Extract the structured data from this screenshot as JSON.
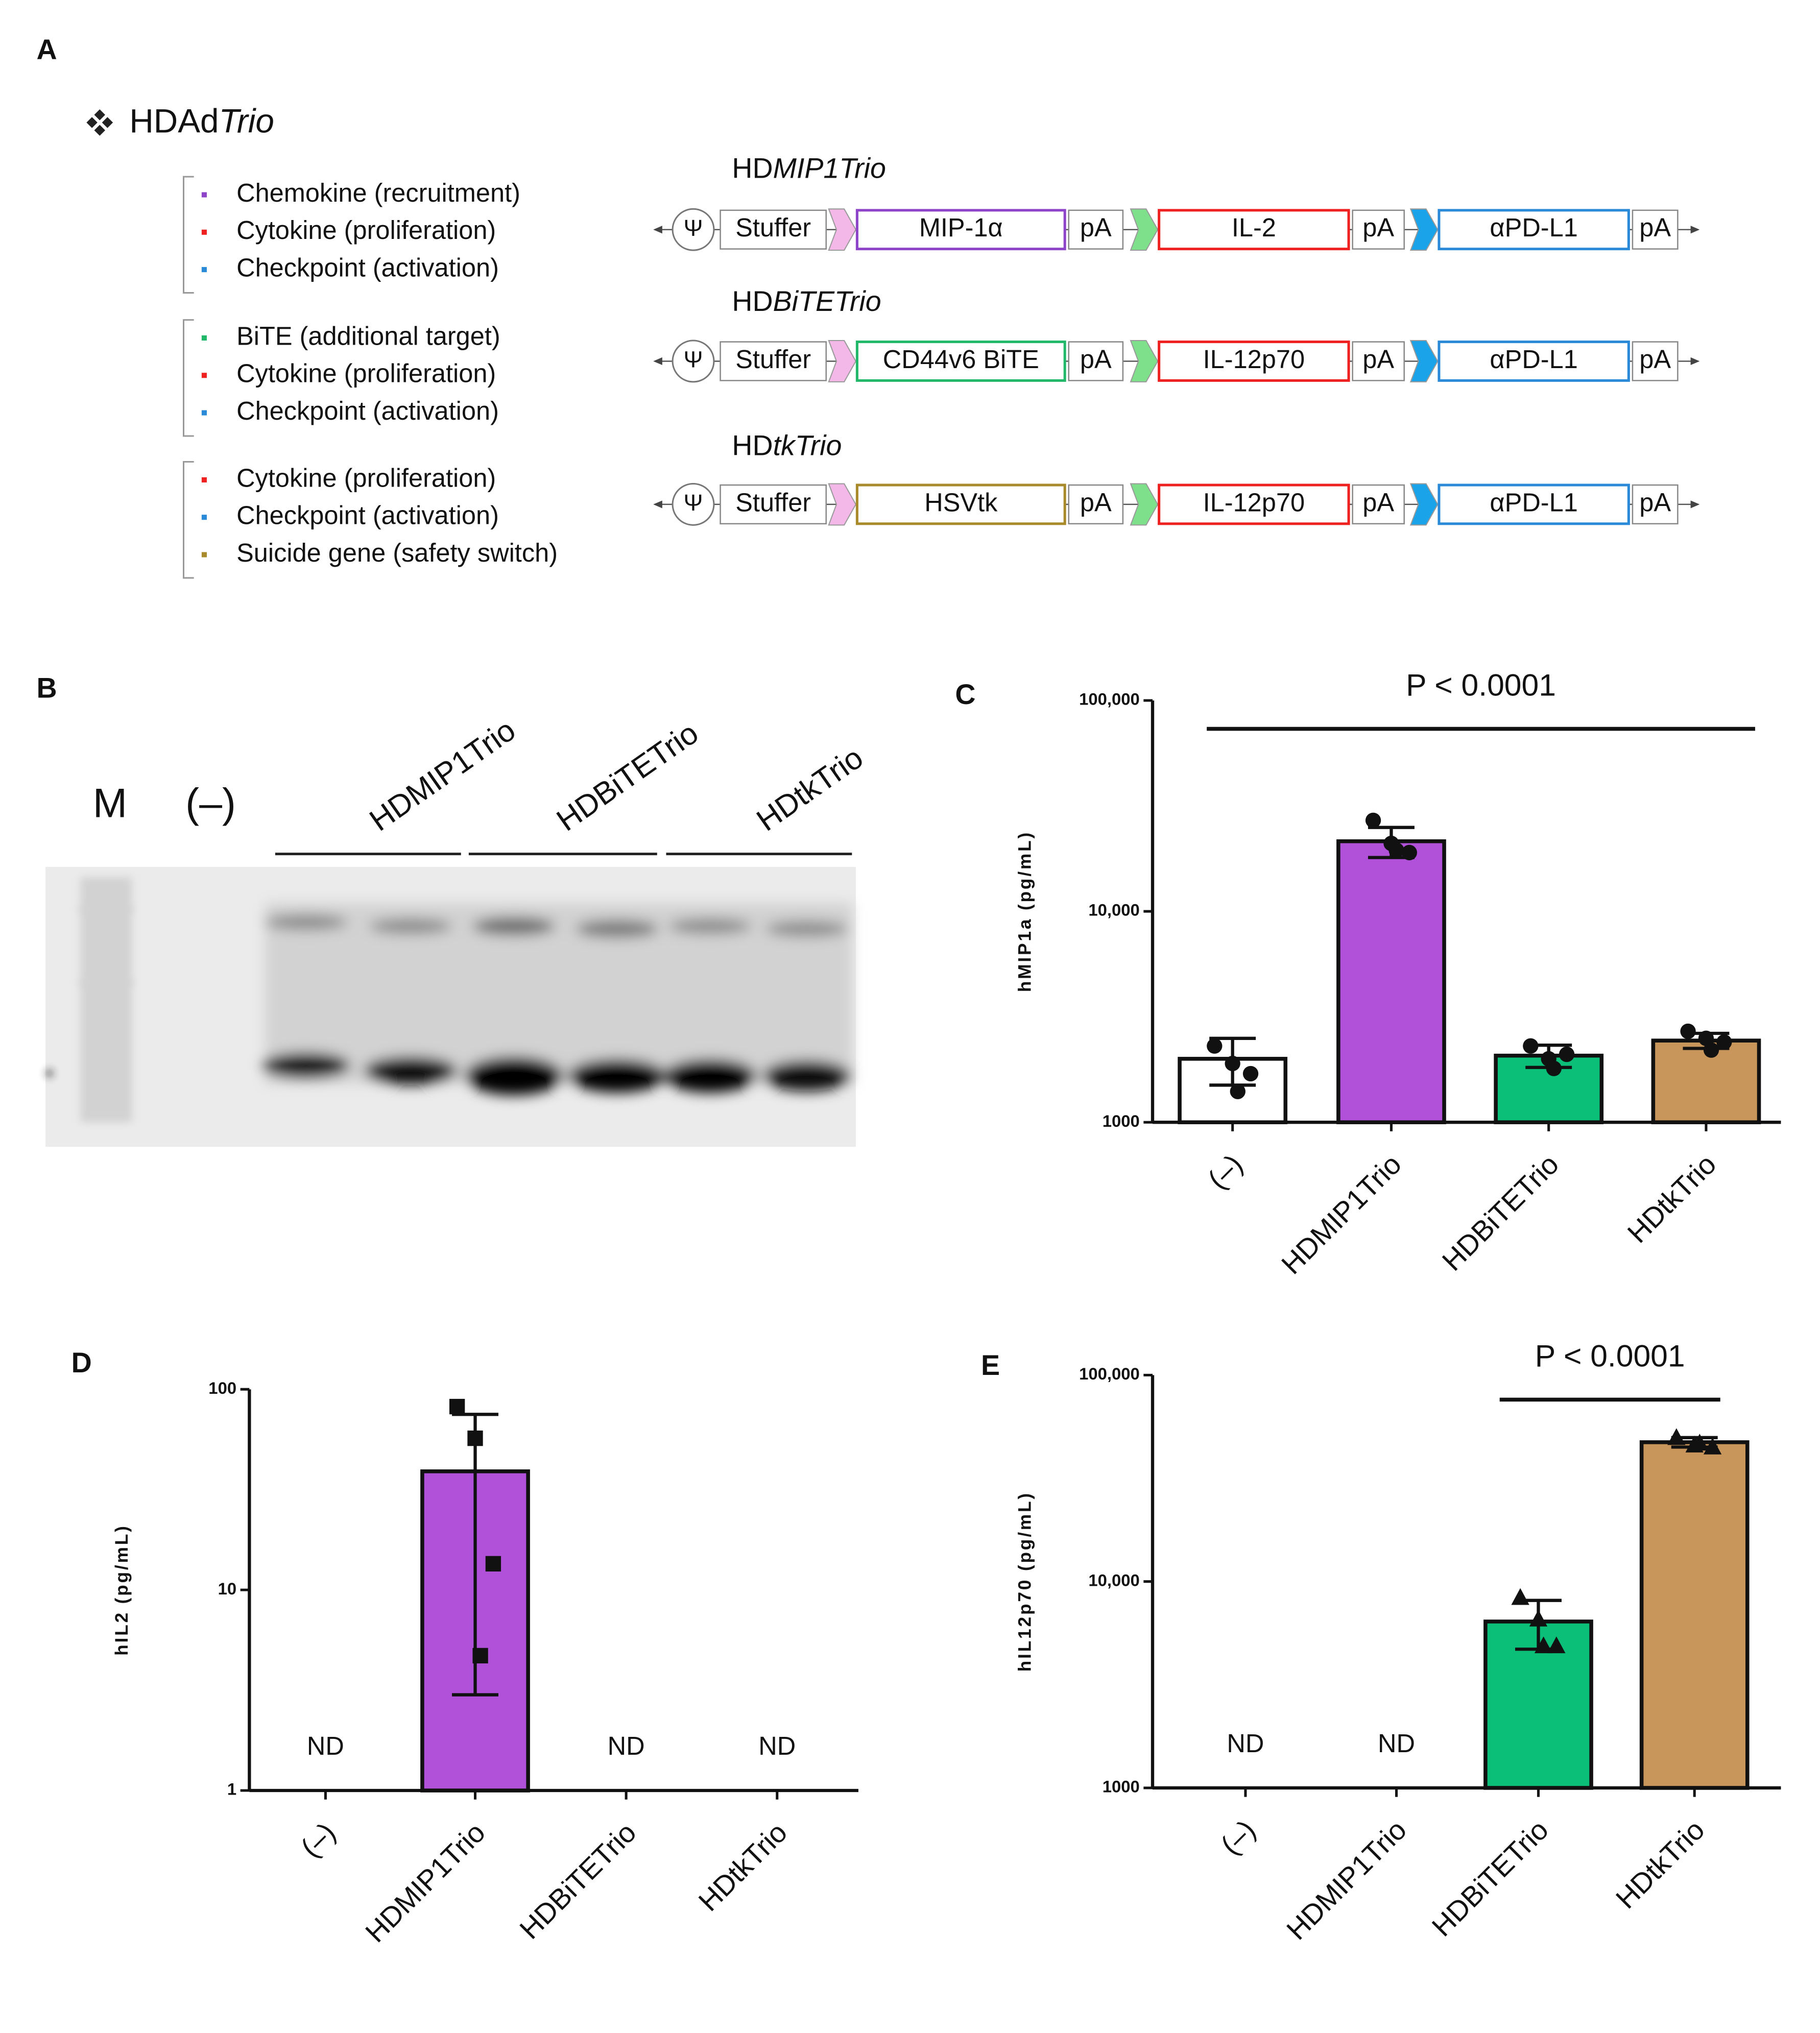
{
  "panel_a": {
    "label": "A",
    "title": [
      "HDAd",
      "Trio"
    ],
    "constructs": [
      {
        "features": [
          {
            "text": "Chemokine (recruitment)",
            "color": "#8e44c8"
          },
          {
            "text": "Cytokine (proliferation)",
            "color": "#ee2020"
          },
          {
            "text": "Checkpoint (activation)",
            "color": "#2a8ad8"
          }
        ],
        "name": [
          "HD",
          "MIP1Trio"
        ],
        "psi": "Ψ",
        "stuffer": "Stuffer",
        "cassettes": [
          {
            "gene": "MIP-1α",
            "color": "#8e44c8",
            "polyA": "pA"
          },
          {
            "gene": "IL-2",
            "color": "#ee2020",
            "polyA": "pA"
          },
          {
            "gene": "αPD-L1",
            "color": "#2a8ad8",
            "polyA": "pA"
          }
        ]
      },
      {
        "features": [
          {
            "text": "BiTE (additional target)",
            "color": "#22b86a"
          },
          {
            "text": "Cytokine (proliferation)",
            "color": "#ee2020"
          },
          {
            "text": "Checkpoint (activation)",
            "color": "#2a8ad8"
          }
        ],
        "name": [
          "HD",
          "BiTETrio"
        ],
        "psi": "Ψ",
        "stuffer": "Stuffer",
        "cassettes": [
          {
            "gene": "CD44v6 BiTE",
            "color": "#22b86a",
            "polyA": "pA"
          },
          {
            "gene": "IL-12p70",
            "color": "#ee2020",
            "polyA": "pA"
          },
          {
            "gene": "αPD-L1",
            "color": "#2a8ad8",
            "polyA": "pA"
          }
        ]
      },
      {
        "features": [
          {
            "text": "Cytokine (proliferation)",
            "color": "#ee2020"
          },
          {
            "text": "Checkpoint (activation)",
            "color": "#2a8ad8"
          },
          {
            "text": "Suicide gene (safety switch)",
            "color": "#a88a2a"
          }
        ],
        "name": [
          "HD",
          "tkTrio"
        ],
        "psi": "Ψ",
        "stuffer": "Stuffer",
        "cassettes": [
          {
            "gene": "HSVtk",
            "color": "#a88a2a",
            "polyA": "pA"
          },
          {
            "gene": "IL-12p70",
            "color": "#ee2020",
            "polyA": "pA"
          },
          {
            "gene": "αPD-L1",
            "color": "#2a8ad8",
            "polyA": "pA"
          }
        ]
      }
    ]
  },
  "panel_b": {
    "label": "B",
    "lanes": [
      "M",
      "(–)"
    ],
    "groups": [
      "HDMIP1Trio",
      "HDBiTETrio",
      "HDtkTrio"
    ]
  },
  "chart_data": [
    {
      "type": "bar",
      "panel_label": "C",
      "y_label": "hMIP1a (pg/mL)",
      "log_scale": true,
      "categories": [
        "(–)",
        "HDMIP1Trio",
        "HDBiTETrio",
        "HDtkTrio"
      ],
      "values": [
        2000,
        21500,
        2070,
        2440
      ],
      "errors": [
        500,
        3500,
        250,
        200
      ],
      "points": [
        [
          2300,
          1900,
          1700,
          1400
        ],
        [
          27000,
          21000,
          19000,
          19500
        ],
        [
          2300,
          2000,
          2100,
          1800
        ],
        [
          2700,
          2500,
          2400,
          2200
        ]
      ],
      "marker": "circle",
      "colors": [
        "#ffffff",
        "#b150d8",
        "#0cbf78",
        "#c8965a"
      ],
      "ylim": [
        1000,
        100000
      ],
      "yticks": [
        1000,
        {
          "value": 10000,
          "label": "10,000"
        },
        {
          "value": 100000,
          "label": "100,000"
        }
      ],
      "annotation": "P < 0.0001"
    },
    {
      "type": "bar",
      "panel_label": "D",
      "y_label": "hIL2 (pg/mL)",
      "log_scale": true,
      "categories": [
        "(–)",
        "HDMIP1Trio",
        "HDBiTETrio",
        "HDtkTrio"
      ],
      "values": [
        null,
        39,
        null,
        null
      ],
      "value_labels": [
        "ND",
        null,
        "ND",
        "ND"
      ],
      "errors": [
        null,
        36,
        null,
        null
      ],
      "points": [
        null,
        [
          82,
          57,
          13.5,
          4.7
        ],
        null,
        null
      ],
      "marker": "square",
      "colors": [
        "#ffffff",
        "#b150d8",
        "#0cbf78",
        "#c8965a"
      ],
      "ylim": [
        1,
        100
      ],
      "yticks": [
        1,
        10,
        100
      ]
    },
    {
      "type": "bar",
      "panel_label": "E",
      "y_label": "hIL12p70 (pg/mL)",
      "log_scale": true,
      "categories": [
        "(–)",
        "HDMIP1Trio",
        "HDBiTETrio",
        "HDtkTrio"
      ],
      "values": [
        null,
        null,
        6400,
        47300
      ],
      "value_labels": [
        "ND",
        "ND",
        null,
        null
      ],
      "errors": [
        null,
        null,
        1700,
        2500
      ],
      "points": [
        null,
        null,
        [
          8400,
          6600,
          4900,
          4900
        ],
        [
          50000,
          46000,
          45000,
          47000
        ]
      ],
      "marker": "triangle",
      "colors": [
        "#ffffff",
        "#b150d8",
        "#0cbf78",
        "#c8965a"
      ],
      "ylim": [
        1000,
        100000
      ],
      "yticks": [
        1000,
        {
          "value": 10000,
          "label": "10,000"
        },
        {
          "value": 100000,
          "label": "100,000"
        }
      ],
      "annotation": "P < 0.0001"
    }
  ]
}
